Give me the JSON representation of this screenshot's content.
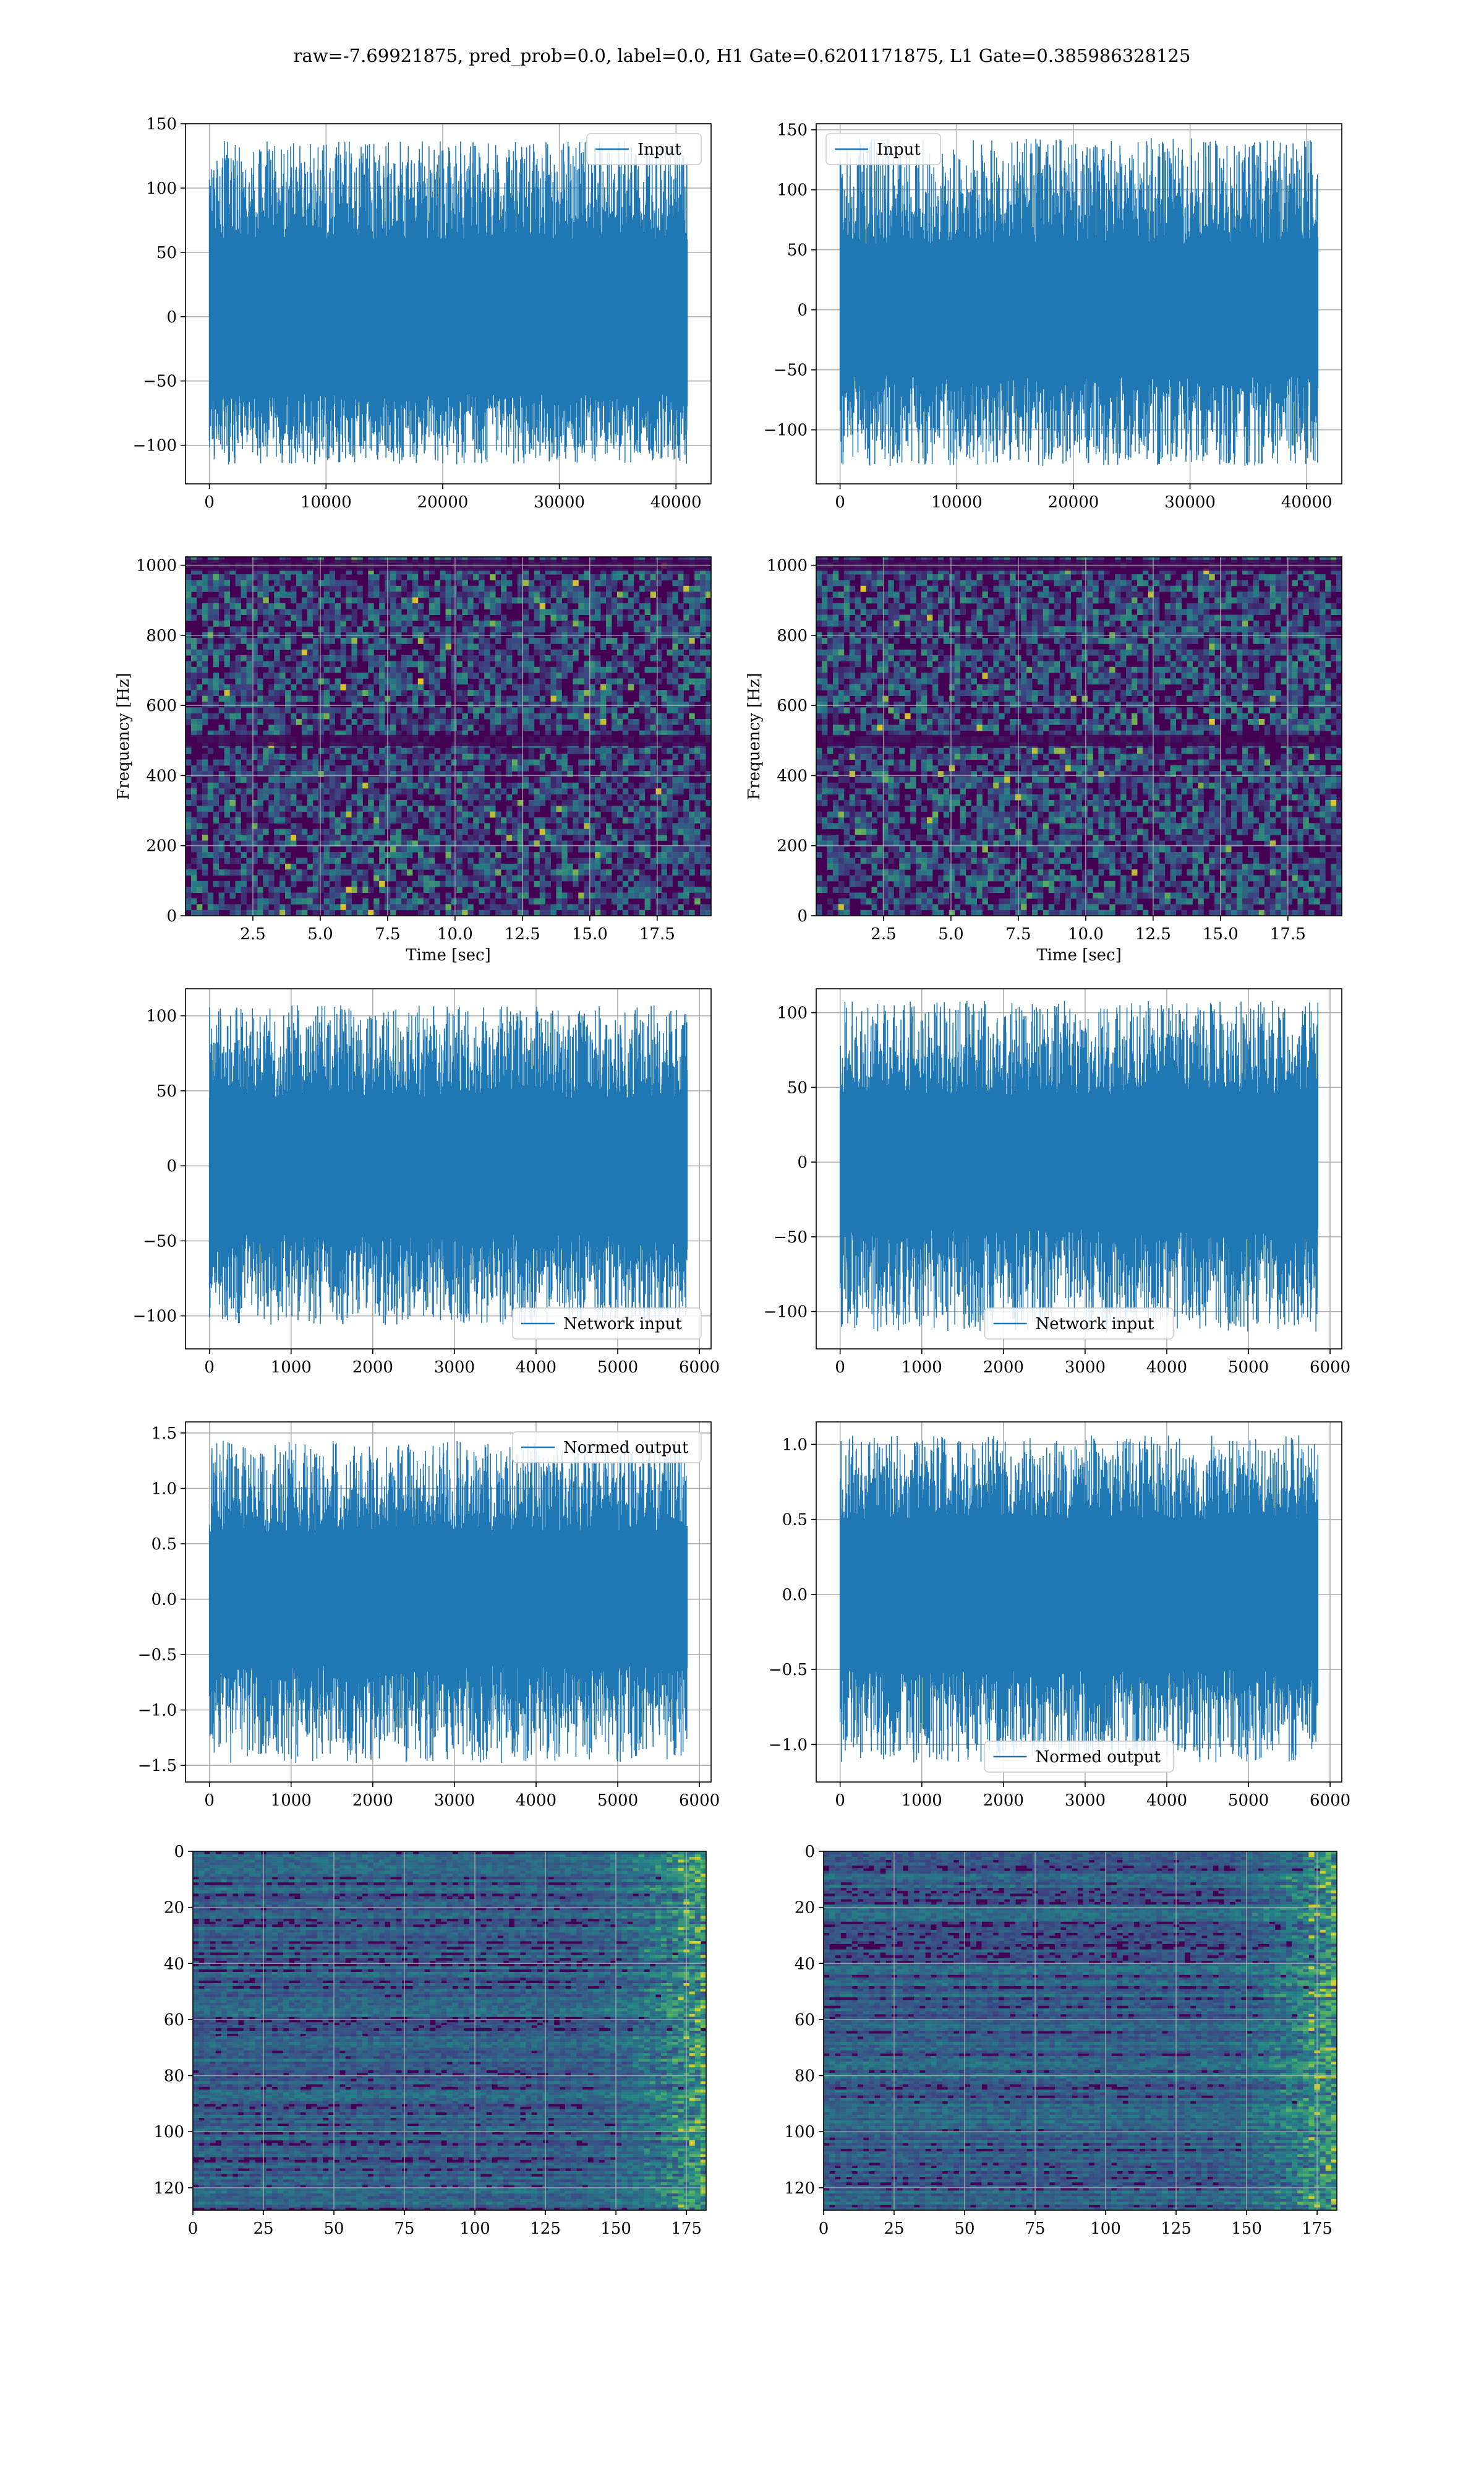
{
  "figure": {
    "title": "raw=-7.69921875, pred_prob=0.0, label=0.0, H1 Gate=0.6201171875, L1 Gate=0.385986328125"
  },
  "colors": {
    "series": "#1f77b4",
    "grid": "#b0b0b0",
    "viridis_dark": "#440154",
    "viridis_mid": "#31688e",
    "viridis_green": "#35b779",
    "viridis_yellow": "#fde725"
  },
  "chart_data": [
    {
      "id": "r1c1",
      "type": "line",
      "legend_placement": "upper right",
      "grid": true,
      "series": [
        {
          "name": "Input",
          "band_abs": 60,
          "peak_range": [
            -115,
            137
          ],
          "n_samples": 40960
        }
      ],
      "xlim": [
        -2048,
        43008
      ],
      "ylim": [
        -130,
        150
      ],
      "xticks": [
        0,
        10000,
        20000,
        30000,
        40000
      ],
      "xtick_labels": [
        "0",
        "10000",
        "20000",
        "30000",
        "40000"
      ],
      "yticks": [
        -100,
        -50,
        0,
        50,
        100,
        150
      ],
      "ytick_labels": [
        "−100",
        "−50",
        "0",
        "50",
        "100",
        "150"
      ]
    },
    {
      "id": "r1c2",
      "type": "line",
      "legend_placement": "upper left",
      "grid": true,
      "series": [
        {
          "name": "Input",
          "band_abs": 55,
          "peak_range": [
            -130,
            143
          ],
          "n_samples": 40960
        }
      ],
      "xlim": [
        -2048,
        43008
      ],
      "ylim": [
        -145,
        155
      ],
      "xticks": [
        0,
        10000,
        20000,
        30000,
        40000
      ],
      "xtick_labels": [
        "0",
        "10000",
        "20000",
        "30000",
        "40000"
      ],
      "yticks": [
        -100,
        -50,
        0,
        50,
        100,
        150
      ],
      "ytick_labels": [
        "−100",
        "−50",
        "0",
        "50",
        "100",
        "150"
      ]
    },
    {
      "id": "r2c1",
      "type": "heatmap",
      "colormap": "viridis",
      "grid": true,
      "xlabel": "Time [sec]",
      "ylabel": "Frequency [Hz]",
      "xlim": [
        0,
        19.5
      ],
      "ylim": [
        0,
        1024
      ],
      "xticks": [
        2.5,
        5.0,
        7.5,
        10.0,
        12.5,
        15.0,
        17.5
      ],
      "xtick_labels": [
        "2.5",
        "5.0",
        "7.5",
        "10.0",
        "12.5",
        "15.0",
        "17.5"
      ],
      "yticks": [
        0,
        200,
        400,
        600,
        800,
        1000
      ],
      "ytick_labels": [
        "0",
        "200",
        "400",
        "600",
        "800",
        "1000"
      ],
      "dark_bands_hz": [
        500,
        1000
      ]
    },
    {
      "id": "r2c2",
      "type": "heatmap",
      "colormap": "viridis",
      "grid": true,
      "xlabel": "Time [sec]",
      "ylabel": "Frequency [Hz]",
      "xlim": [
        0,
        19.5
      ],
      "ylim": [
        0,
        1024
      ],
      "xticks": [
        2.5,
        5.0,
        7.5,
        10.0,
        12.5,
        15.0,
        17.5
      ],
      "xtick_labels": [
        "2.5",
        "5.0",
        "7.5",
        "10.0",
        "12.5",
        "15.0",
        "17.5"
      ],
      "yticks": [
        0,
        200,
        400,
        600,
        800,
        1000
      ],
      "ytick_labels": [
        "0",
        "200",
        "400",
        "600",
        "800",
        "1000"
      ],
      "dark_bands_hz": [
        500,
        1000
      ]
    },
    {
      "id": "r3c1",
      "type": "line",
      "legend_placement": "lower right",
      "grid": true,
      "series": [
        {
          "name": "Network input",
          "band_abs": 45,
          "peak_range": [
            -106,
            107
          ],
          "n_samples": 5850
        }
      ],
      "xlim": [
        -293,
        6143
      ],
      "ylim": [
        -122,
        118
      ],
      "xticks": [
        0,
        1000,
        2000,
        3000,
        4000,
        5000,
        6000
      ],
      "xtick_labels": [
        "0",
        "1000",
        "2000",
        "3000",
        "4000",
        "5000",
        "6000"
      ],
      "yticks": [
        -100,
        -50,
        0,
        50,
        100
      ],
      "ytick_labels": [
        "−100",
        "−50",
        "0",
        "50",
        "100"
      ]
    },
    {
      "id": "r3c2",
      "type": "line",
      "legend_placement": "lower center",
      "grid": true,
      "series": [
        {
          "name": "Network input",
          "band_abs": 45,
          "peak_range": [
            -114,
            108
          ],
          "n_samples": 5850
        }
      ],
      "xlim": [
        -293,
        6143
      ],
      "ylim": [
        -125,
        116
      ],
      "xticks": [
        0,
        1000,
        2000,
        3000,
        4000,
        5000,
        6000
      ],
      "xtick_labels": [
        "0",
        "1000",
        "2000",
        "3000",
        "4000",
        "5000",
        "6000"
      ],
      "yticks": [
        -100,
        -50,
        0,
        50,
        100
      ],
      "ytick_labels": [
        "−100",
        "−50",
        "0",
        "50",
        "100"
      ]
    },
    {
      "id": "r4c1",
      "type": "line",
      "legend_placement": "upper right",
      "grid": true,
      "series": [
        {
          "name": "Normed output",
          "band_abs": 0.6,
          "peak_range": [
            -1.48,
            1.43
          ],
          "n_samples": 5850
        }
      ],
      "xlim": [
        -293,
        6143
      ],
      "ylim": [
        -1.65,
        1.6
      ],
      "xticks": [
        0,
        1000,
        2000,
        3000,
        4000,
        5000,
        6000
      ],
      "xtick_labels": [
        "0",
        "1000",
        "2000",
        "3000",
        "4000",
        "5000",
        "6000"
      ],
      "yticks": [
        -1.5,
        -1.0,
        -0.5,
        0.0,
        0.5,
        1.0,
        1.5
      ],
      "ytick_labels": [
        "−1.5",
        "−1.0",
        "−0.5",
        "0.0",
        "0.5",
        "1.0",
        "1.5"
      ]
    },
    {
      "id": "r4c2",
      "type": "line",
      "legend_placement": "lower center",
      "grid": true,
      "series": [
        {
          "name": "Normed output",
          "band_abs": 0.5,
          "peak_range": [
            -1.12,
            1.06
          ],
          "n_samples": 5850
        }
      ],
      "xlim": [
        -293,
        6143
      ],
      "ylim": [
        -1.25,
        1.15
      ],
      "xticks": [
        0,
        1000,
        2000,
        3000,
        4000,
        5000,
        6000
      ],
      "xtick_labels": [
        "0",
        "1000",
        "2000",
        "3000",
        "4000",
        "5000",
        "6000"
      ],
      "yticks": [
        -1.0,
        -0.5,
        0.0,
        0.5,
        1.0
      ],
      "ytick_labels": [
        "−1.0",
        "−0.5",
        "0.0",
        "0.5",
        "1.0"
      ]
    },
    {
      "id": "r5c1",
      "type": "heatmap",
      "colormap": "viridis",
      "grid": true,
      "y_inverted": true,
      "xlim": [
        0,
        182
      ],
      "ylim": [
        0,
        128
      ],
      "xticks": [
        0,
        25,
        50,
        75,
        100,
        125,
        150,
        175
      ],
      "xtick_labels": [
        "0",
        "25",
        "50",
        "75",
        "100",
        "125",
        "150",
        "175"
      ],
      "yticks": [
        0,
        20,
        40,
        60,
        80,
        100,
        120
      ],
      "ytick_labels": [
        "0",
        "20",
        "40",
        "60",
        "80",
        "100",
        "120"
      ]
    },
    {
      "id": "r5c2",
      "type": "heatmap",
      "colormap": "viridis",
      "grid": true,
      "y_inverted": true,
      "xlim": [
        0,
        182
      ],
      "ylim": [
        0,
        128
      ],
      "xticks": [
        0,
        25,
        50,
        75,
        100,
        125,
        150,
        175
      ],
      "xtick_labels": [
        "0",
        "25",
        "50",
        "75",
        "100",
        "125",
        "150",
        "175"
      ],
      "yticks": [
        0,
        20,
        40,
        60,
        80,
        100,
        120
      ],
      "ytick_labels": [
        "0",
        "20",
        "40",
        "60",
        "80",
        "100",
        "120"
      ]
    }
  ]
}
